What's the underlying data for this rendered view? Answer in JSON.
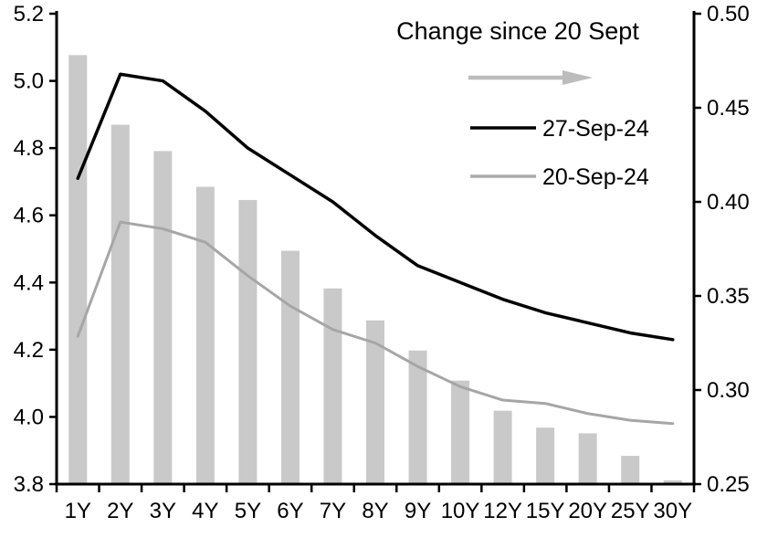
{
  "chart_data": {
    "type": "bar+line",
    "title": "",
    "categories": [
      "1Y",
      "2Y",
      "3Y",
      "4Y",
      "5Y",
      "6Y",
      "7Y",
      "8Y",
      "9Y",
      "10Y",
      "12Y",
      "15Y",
      "20Y",
      "25Y",
      "30Y"
    ],
    "series": [
      {
        "name": "Change since 20 Sept",
        "type": "bar",
        "axis": "right",
        "color": "#c9c9c9",
        "values": [
          0.478,
          0.441,
          0.427,
          0.408,
          0.401,
          0.374,
          0.354,
          0.337,
          0.321,
          0.305,
          0.289,
          0.28,
          0.277,
          0.265,
          0.252
        ]
      },
      {
        "name": "27-Sep-24",
        "type": "line",
        "axis": "left",
        "color": "#000000",
        "values": [
          4.71,
          5.02,
          5.0,
          4.91,
          4.8,
          4.72,
          4.64,
          4.54,
          4.45,
          4.4,
          4.35,
          4.31,
          4.28,
          4.25,
          4.23
        ]
      },
      {
        "name": "20-Sep-24",
        "type": "line",
        "axis": "left",
        "color": "#a6a6a6",
        "values": [
          4.24,
          4.58,
          4.56,
          4.52,
          4.42,
          4.33,
          4.26,
          4.22,
          4.15,
          4.09,
          4.05,
          4.04,
          4.01,
          3.99,
          3.98
        ]
      }
    ],
    "left_axis": {
      "min": 3.8,
      "max": 5.2,
      "step": 0.2,
      "tick_labels": [
        "5.2",
        "5.0",
        "4.8",
        "4.6",
        "4.4",
        "4.2",
        "4.0",
        "3.8"
      ]
    },
    "right_axis": {
      "min": 0.25,
      "max": 0.5,
      "step": 0.05,
      "tick_labels": [
        "0.50",
        "0.45",
        "0.40",
        "0.35",
        "0.30",
        "0.25"
      ]
    },
    "legend": {
      "position": "top-center-inside",
      "title": "Change since 20 Sept",
      "arrow_icon_color": "#bcbcbc",
      "entries": [
        {
          "label": "27-Sep-24",
          "color": "#000000"
        },
        {
          "label": "20-Sep-24",
          "color": "#ababab"
        }
      ]
    },
    "grid": false,
    "background": "#ffffff"
  }
}
